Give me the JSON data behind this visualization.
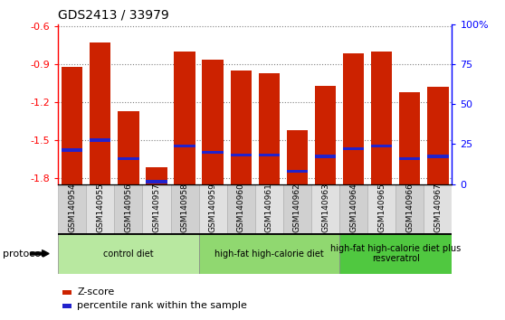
{
  "title": "GDS2413 / 33979",
  "samples": [
    "GSM140954",
    "GSM140955",
    "GSM140956",
    "GSM140957",
    "GSM140958",
    "GSM140959",
    "GSM140960",
    "GSM140961",
    "GSM140962",
    "GSM140963",
    "GSM140964",
    "GSM140965",
    "GSM140966",
    "GSM140967"
  ],
  "zscore": [
    -0.92,
    -0.73,
    -1.27,
    -1.72,
    -0.8,
    -0.86,
    -0.95,
    -0.97,
    -1.42,
    -1.07,
    -0.81,
    -0.8,
    -1.12,
    -1.08
  ],
  "percentile_y": [
    -1.58,
    -1.5,
    -1.65,
    -1.83,
    -1.55,
    -1.6,
    -1.62,
    -1.62,
    -1.75,
    -1.63,
    -1.57,
    -1.55,
    -1.65,
    -1.63
  ],
  "ylim_left": [
    -1.85,
    -0.58
  ],
  "ylim_right": [
    0,
    100
  ],
  "yticks_left": [
    -1.8,
    -1.5,
    -1.2,
    -0.9,
    -0.6
  ],
  "yticks_right": [
    0,
    25,
    50,
    75,
    100
  ],
  "ytick_right_labels": [
    "0",
    "25",
    "50",
    "75",
    "100%"
  ],
  "bar_color": "#cc2200",
  "percentile_color": "#2222cc",
  "groups": [
    {
      "label": "control diet",
      "start": 0,
      "end": 5,
      "color": "#b8e8a0"
    },
    {
      "label": "high-fat high-calorie diet",
      "start": 5,
      "end": 10,
      "color": "#90d870"
    },
    {
      "label": "high-fat high-calorie diet plus\nresveratrol",
      "start": 10,
      "end": 14,
      "color": "#50c840"
    }
  ],
  "legend_items": [
    {
      "label": "Z-score",
      "color": "#cc2200"
    },
    {
      "label": "percentile rank within the sample",
      "color": "#2222cc"
    }
  ],
  "protocol_label": "protocol",
  "tick_bg_even": "#d0d0d0",
  "tick_bg_odd": "#e0e0e0"
}
